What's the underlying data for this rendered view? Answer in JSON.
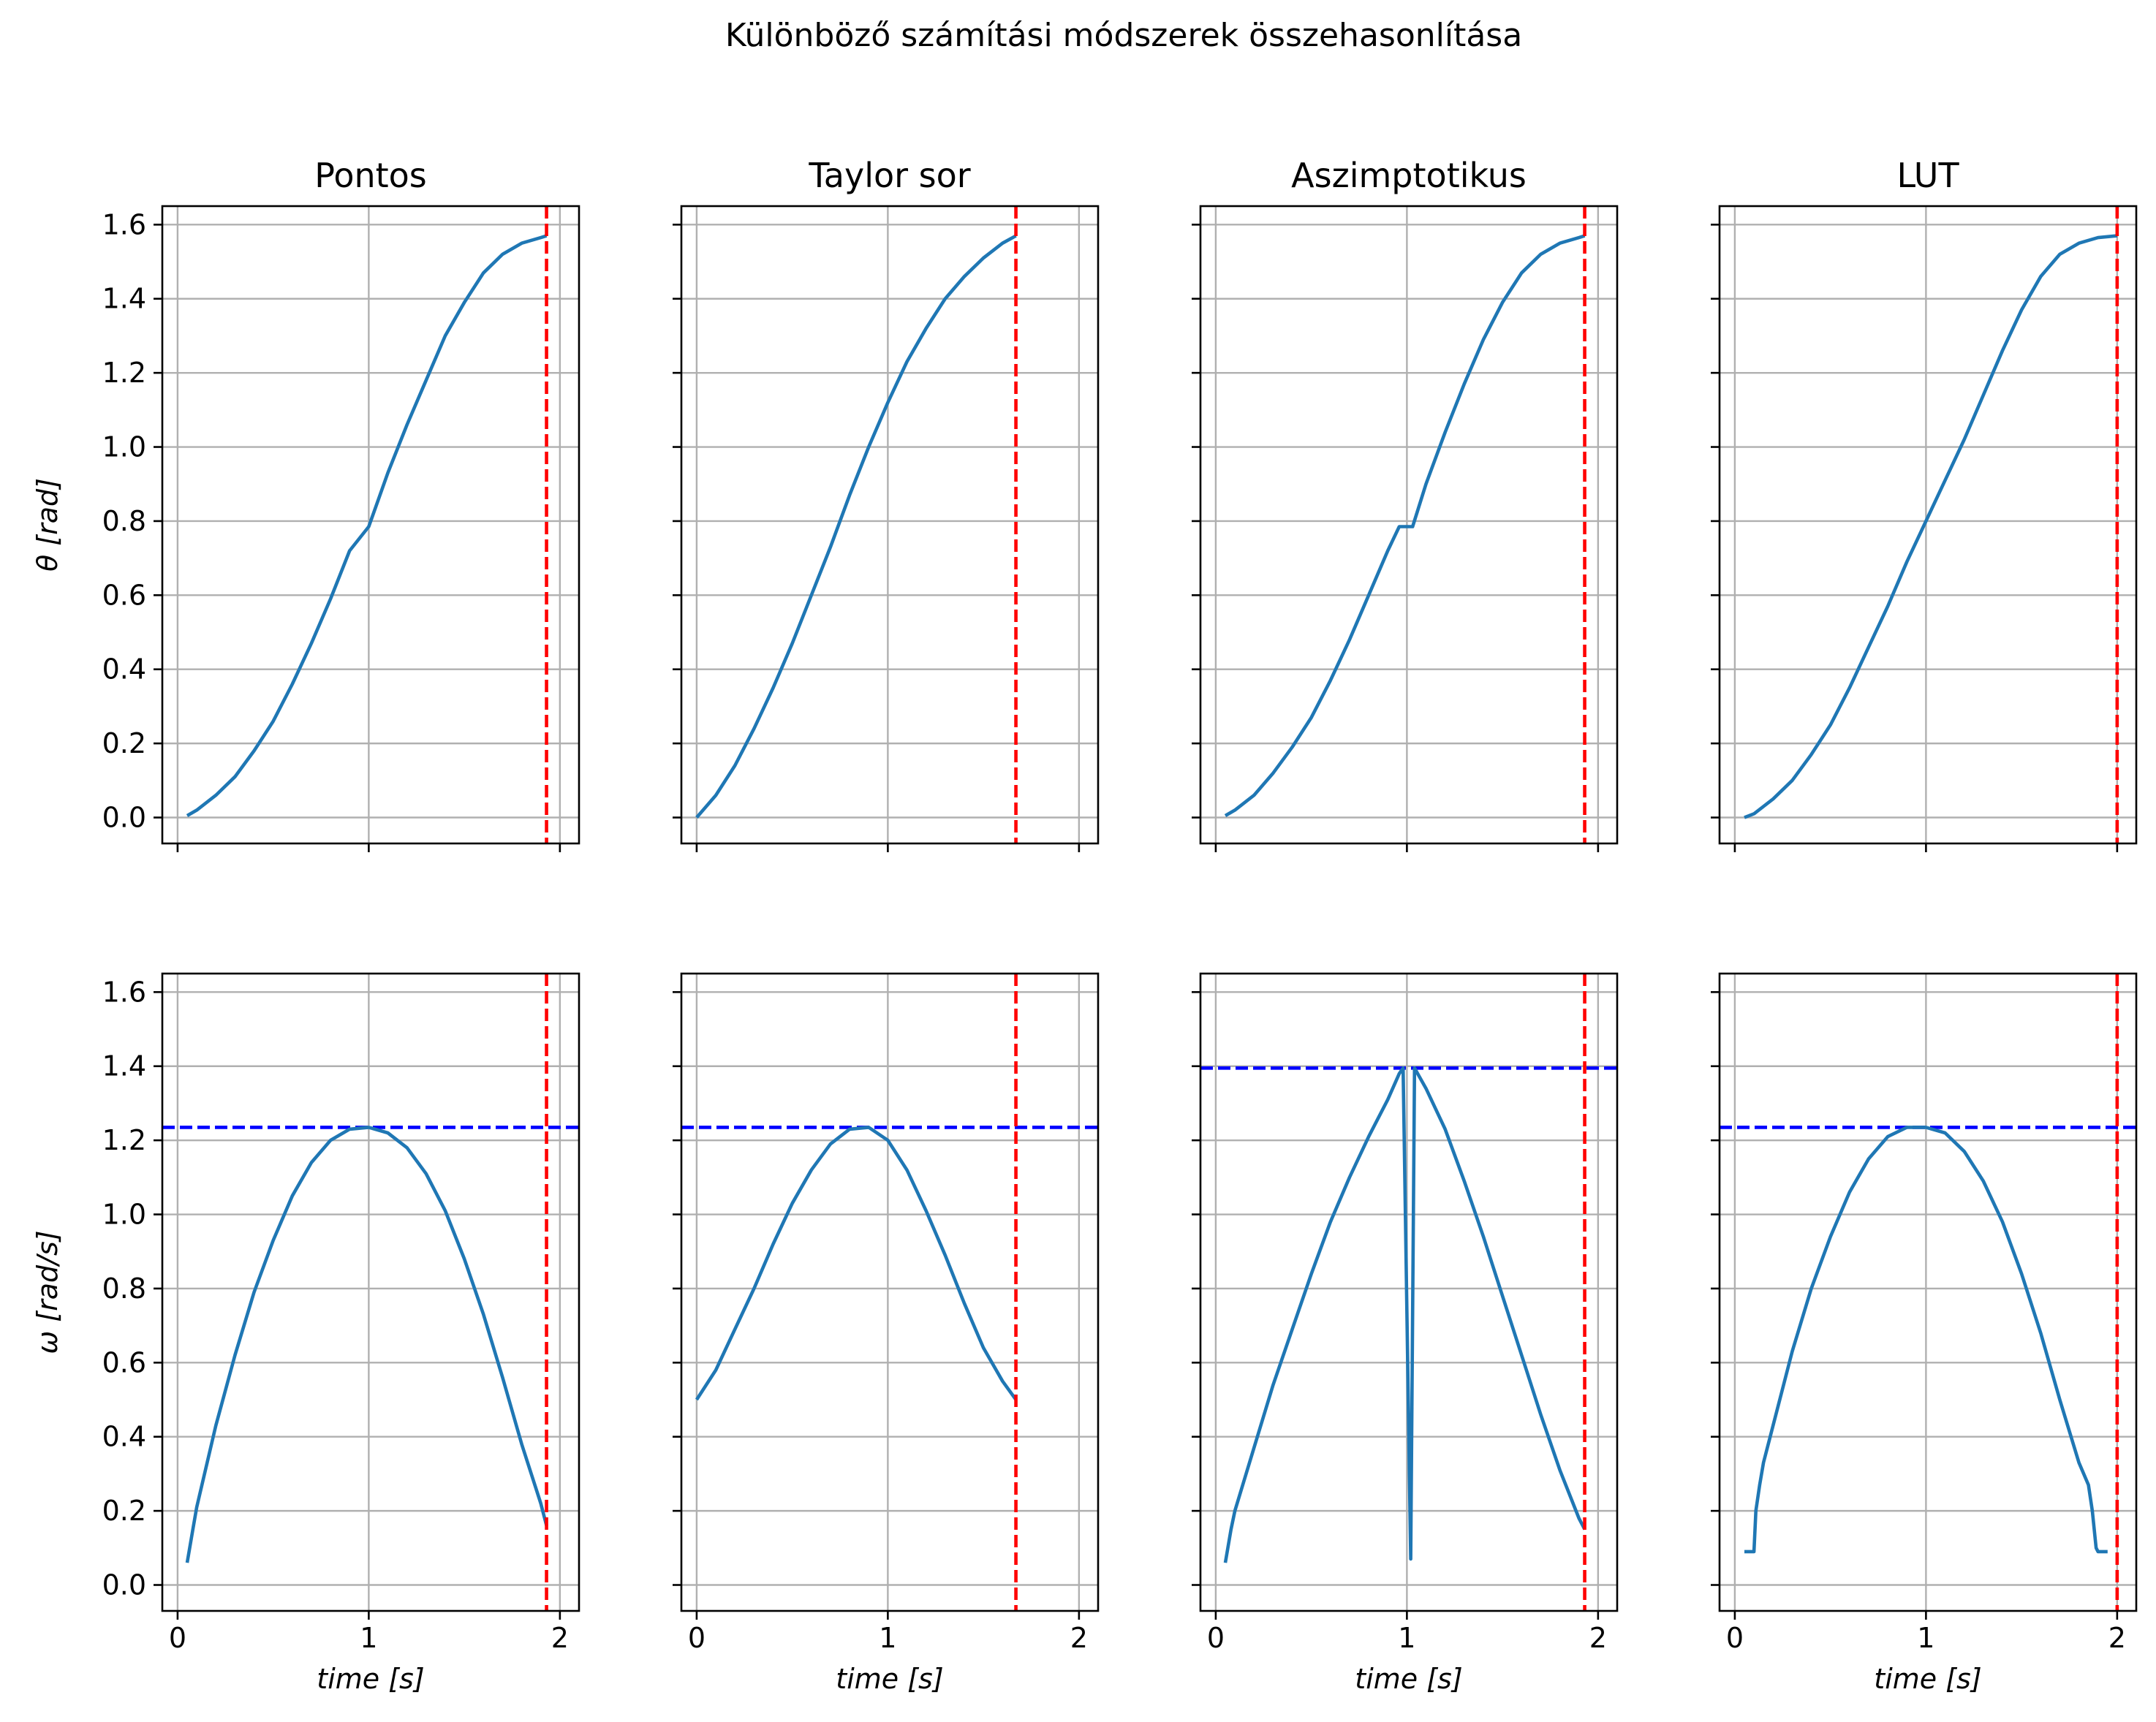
{
  "chart_data": {
    "type": "line",
    "title": "Különböző számítási módszerek összehasonlítása",
    "xlabel": "time [s]",
    "ylabel_top": "θ [rad]",
    "ylabel_bottom": "ω [rad/s]",
    "xlim": [
      -0.08,
      2.1
    ],
    "ylim": [
      -0.07,
      1.65
    ],
    "xticks": [
      "0",
      "1",
      "2"
    ],
    "yticks": [
      "0.0",
      "0.2",
      "0.4",
      "0.6",
      "0.8",
      "1.0",
      "1.2",
      "1.4",
      "1.6"
    ],
    "grid": true,
    "panels": [
      {
        "title": "Pontos",
        "end_time": 1.93,
        "max_omega": 1.235,
        "theta": {
          "x": [
            0.05,
            0.1,
            0.2,
            0.3,
            0.4,
            0.5,
            0.6,
            0.7,
            0.8,
            0.9,
            1.0,
            1.1,
            1.2,
            1.3,
            1.4,
            1.5,
            1.6,
            1.7,
            1.8,
            1.9,
            1.93
          ],
          "y": [
            0.005,
            0.02,
            0.06,
            0.11,
            0.18,
            0.26,
            0.36,
            0.47,
            0.59,
            0.72,
            0.785,
            0.93,
            1.06,
            1.18,
            1.3,
            1.39,
            1.47,
            1.52,
            1.55,
            1.565,
            1.57
          ]
        },
        "omega": {
          "x": [
            0.05,
            0.08,
            0.1,
            0.2,
            0.3,
            0.4,
            0.5,
            0.6,
            0.7,
            0.8,
            0.9,
            1.0,
            1.1,
            1.2,
            1.3,
            1.4,
            1.5,
            1.6,
            1.7,
            1.8,
            1.9,
            1.93
          ],
          "y": [
            0.06,
            0.15,
            0.21,
            0.43,
            0.62,
            0.79,
            0.93,
            1.05,
            1.14,
            1.2,
            1.23,
            1.235,
            1.22,
            1.18,
            1.11,
            1.01,
            0.88,
            0.73,
            0.56,
            0.38,
            0.22,
            0.16
          ]
        }
      },
      {
        "title": "Taylor sor",
        "end_time": 1.67,
        "max_omega": 1.235,
        "theta": {
          "x": [
            0.0,
            0.1,
            0.2,
            0.3,
            0.4,
            0.5,
            0.6,
            0.7,
            0.8,
            0.9,
            1.0,
            1.1,
            1.2,
            1.3,
            1.4,
            1.5,
            1.6,
            1.67
          ],
          "y": [
            0.0,
            0.06,
            0.14,
            0.24,
            0.35,
            0.47,
            0.6,
            0.73,
            0.87,
            1.0,
            1.12,
            1.23,
            1.32,
            1.4,
            1.46,
            1.51,
            1.55,
            1.57
          ]
        },
        "omega": {
          "x": [
            0.0,
            0.1,
            0.2,
            0.3,
            0.4,
            0.5,
            0.6,
            0.7,
            0.8,
            0.9,
            1.0,
            1.1,
            1.2,
            1.3,
            1.4,
            1.5,
            1.6,
            1.67
          ],
          "y": [
            0.5,
            0.58,
            0.69,
            0.8,
            0.92,
            1.03,
            1.12,
            1.19,
            1.23,
            1.235,
            1.2,
            1.12,
            1.01,
            0.89,
            0.76,
            0.64,
            0.55,
            0.5
          ]
        }
      },
      {
        "title": "Aszimptotikus",
        "end_time": 1.93,
        "max_omega": 1.395,
        "theta": {
          "x": [
            0.05,
            0.1,
            0.2,
            0.3,
            0.4,
            0.5,
            0.6,
            0.7,
            0.8,
            0.9,
            0.96,
            1.0,
            1.03,
            1.1,
            1.2,
            1.3,
            1.4,
            1.5,
            1.6,
            1.7,
            1.8,
            1.9,
            1.93
          ],
          "y": [
            0.005,
            0.02,
            0.06,
            0.12,
            0.19,
            0.27,
            0.37,
            0.48,
            0.6,
            0.72,
            0.785,
            0.785,
            0.785,
            0.9,
            1.04,
            1.17,
            1.29,
            1.39,
            1.47,
            1.52,
            1.55,
            1.565,
            1.57
          ]
        },
        "omega": {
          "x": [
            0.05,
            0.08,
            0.1,
            0.2,
            0.3,
            0.4,
            0.5,
            0.6,
            0.7,
            0.8,
            0.9,
            0.96,
            0.98,
            1.02,
            1.04,
            1.1,
            1.2,
            1.3,
            1.4,
            1.5,
            1.6,
            1.7,
            1.8,
            1.9,
            1.93
          ],
          "y": [
            0.06,
            0.15,
            0.2,
            0.37,
            0.54,
            0.69,
            0.84,
            0.98,
            1.1,
            1.21,
            1.31,
            1.38,
            1.395,
            0.07,
            1.395,
            1.34,
            1.23,
            1.09,
            0.94,
            0.78,
            0.62,
            0.46,
            0.31,
            0.18,
            0.15
          ]
        }
      },
      {
        "title": "LUT",
        "end_time": 2.0,
        "max_omega": 1.235,
        "theta": {
          "x": [
            0.05,
            0.1,
            0.2,
            0.3,
            0.4,
            0.5,
            0.6,
            0.7,
            0.8,
            0.9,
            1.0,
            1.1,
            1.2,
            1.3,
            1.4,
            1.5,
            1.6,
            1.7,
            1.8,
            1.9,
            2.0
          ],
          "y": [
            0.0,
            0.01,
            0.05,
            0.1,
            0.17,
            0.25,
            0.35,
            0.46,
            0.57,
            0.69,
            0.8,
            0.91,
            1.02,
            1.14,
            1.26,
            1.37,
            1.46,
            1.52,
            1.55,
            1.565,
            1.57
          ]
        },
        "omega": {
          "x": [
            0.05,
            0.1,
            0.11,
            0.13,
            0.15,
            0.2,
            0.3,
            0.4,
            0.5,
            0.6,
            0.7,
            0.8,
            0.9,
            1.0,
            1.1,
            1.2,
            1.3,
            1.4,
            1.5,
            1.6,
            1.7,
            1.8,
            1.85,
            1.87,
            1.89,
            1.9,
            1.95
          ],
          "y": [
            0.09,
            0.09,
            0.2,
            0.27,
            0.33,
            0.43,
            0.63,
            0.8,
            0.94,
            1.06,
            1.15,
            1.21,
            1.235,
            1.235,
            1.22,
            1.17,
            1.09,
            0.98,
            0.84,
            0.68,
            0.5,
            0.33,
            0.27,
            0.2,
            0.1,
            0.09,
            0.09
          ]
        }
      }
    ]
  }
}
